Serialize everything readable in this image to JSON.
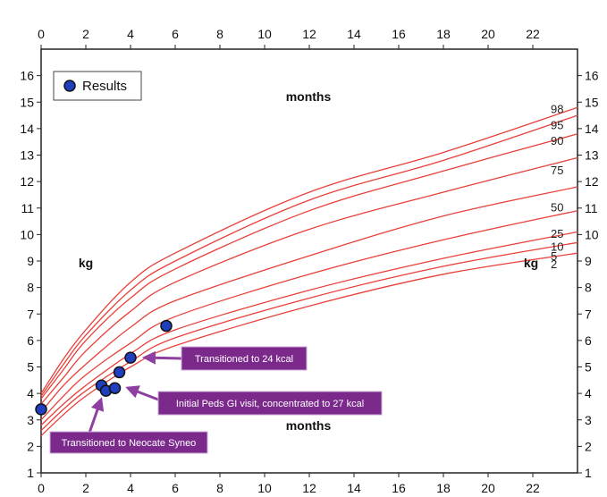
{
  "chart_data": {
    "type": "line",
    "xlim": [
      0,
      24
    ],
    "ylim": [
      1,
      17
    ],
    "x_ticks": [
      0,
      2,
      4,
      6,
      8,
      10,
      12,
      14,
      16,
      18,
      20,
      22
    ],
    "y_ticks": [
      1,
      2,
      3,
      4,
      5,
      6,
      7,
      8,
      9,
      10,
      11,
      12,
      13,
      14,
      15,
      16
    ],
    "axis_label_x": "months",
    "axis_label_y": "kg",
    "grid": false,
    "legend": {
      "position": "top-left",
      "label": "Results"
    },
    "percentile_labels": [
      "98",
      "95",
      "90",
      "75",
      "50",
      "25",
      "10",
      "5",
      "2"
    ],
    "percentile_curves": [
      {
        "name": "98",
        "values": [
          [
            0,
            4.0
          ],
          [
            1,
            5.3
          ],
          [
            2,
            6.4
          ],
          [
            4,
            8.2
          ],
          [
            6,
            9.3
          ],
          [
            12,
            11.6
          ],
          [
            18,
            13.1
          ],
          [
            24,
            14.8
          ]
        ]
      },
      {
        "name": "95",
        "values": [
          [
            0,
            3.9
          ],
          [
            1,
            5.1
          ],
          [
            2,
            6.2
          ],
          [
            4,
            7.9
          ],
          [
            6,
            9.0
          ],
          [
            12,
            11.3
          ],
          [
            18,
            12.8
          ],
          [
            24,
            14.5
          ]
        ]
      },
      {
        "name": "90",
        "values": [
          [
            0,
            3.8
          ],
          [
            1,
            4.9
          ],
          [
            2,
            6.0
          ],
          [
            4,
            7.6
          ],
          [
            6,
            8.7
          ],
          [
            12,
            10.9
          ],
          [
            18,
            12.4
          ],
          [
            24,
            13.8
          ]
        ]
      },
      {
        "name": "75",
        "values": [
          [
            0,
            3.6
          ],
          [
            1,
            4.6
          ],
          [
            2,
            5.6
          ],
          [
            4,
            7.1
          ],
          [
            6,
            8.2
          ],
          [
            12,
            10.2
          ],
          [
            18,
            11.6
          ],
          [
            24,
            12.9
          ]
        ]
      },
      {
        "name": "50",
        "values": [
          [
            0,
            3.3
          ],
          [
            1,
            4.3
          ],
          [
            2,
            5.1
          ],
          [
            4,
            6.5
          ],
          [
            6,
            7.5
          ],
          [
            12,
            9.2
          ],
          [
            18,
            10.7
          ],
          [
            24,
            11.8
          ]
        ]
      },
      {
        "name": "25",
        "values": [
          [
            0,
            3.0
          ],
          [
            1,
            3.9
          ],
          [
            2,
            4.7
          ],
          [
            4,
            5.9
          ],
          [
            6,
            6.9
          ],
          [
            12,
            8.5
          ],
          [
            18,
            9.8
          ],
          [
            24,
            10.9
          ]
        ]
      },
      {
        "name": "10",
        "values": [
          [
            0,
            2.8
          ],
          [
            1,
            3.6
          ],
          [
            2,
            4.3
          ],
          [
            4,
            5.5
          ],
          [
            6,
            6.4
          ],
          [
            12,
            7.9
          ],
          [
            18,
            9.1
          ],
          [
            24,
            10.1
          ]
        ]
      },
      {
        "name": "5",
        "values": [
          [
            0,
            2.6
          ],
          [
            1,
            3.4
          ],
          [
            2,
            4.1
          ],
          [
            4,
            5.2
          ],
          [
            6,
            6.1
          ],
          [
            12,
            7.6
          ],
          [
            18,
            8.8
          ],
          [
            24,
            9.7
          ]
        ]
      },
      {
        "name": "2",
        "values": [
          [
            0,
            2.4
          ],
          [
            1,
            3.2
          ],
          [
            2,
            3.9
          ],
          [
            4,
            5.0
          ],
          [
            6,
            5.8
          ],
          [
            12,
            7.3
          ],
          [
            18,
            8.5
          ],
          [
            24,
            9.3
          ]
        ]
      }
    ],
    "series": [
      {
        "name": "Results",
        "points": [
          [
            0,
            3.4
          ],
          [
            2.7,
            4.3
          ],
          [
            2.9,
            4.1
          ],
          [
            3.3,
            4.2
          ],
          [
            3.5,
            4.8
          ],
          [
            4.0,
            5.35
          ],
          [
            5.6,
            6.55
          ]
        ]
      }
    ],
    "annotations": [
      {
        "text": "Transitioned to 24 kcal",
        "points_to": [
          4.0,
          5.35
        ]
      },
      {
        "text": "Initial Peds GI visit, concentrated to 27 kcal",
        "points_to": [
          3.3,
          4.2
        ]
      },
      {
        "text": "Transitioned to Neocate Syneo",
        "points_to": [
          2.7,
          4.3
        ]
      }
    ],
    "colors": {
      "curve": "#e8403a",
      "marker_fill": "#1f3fbf",
      "annotation_bg": "#7b2a8c",
      "arrow": "#8e3fa0"
    }
  }
}
